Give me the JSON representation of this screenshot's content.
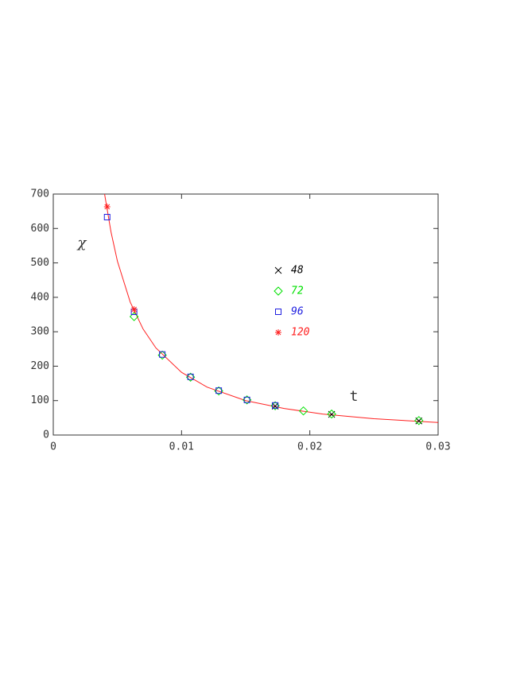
{
  "chart_data": {
    "type": "scatter",
    "x_label": "t",
    "y_label": "χ",
    "xlim": [
      0,
      0.03
    ],
    "ylim": [
      0,
      700
    ],
    "xticks": [
      0,
      0.01,
      0.02,
      0.03
    ],
    "yticks": [
      0,
      100,
      200,
      300,
      400,
      500,
      600,
      700
    ],
    "series": [
      {
        "name": "48",
        "color": "#000000",
        "marker": "x",
        "x": [
          0.0173,
          0.0217,
          0.0285
        ],
        "values": [
          84,
          60,
          41
        ]
      },
      {
        "name": "72",
        "color": "#00e000",
        "marker": "diamond",
        "x": [
          0.0063,
          0.0085,
          0.0107,
          0.0129,
          0.0151,
          0.0173,
          0.0195,
          0.0217,
          0.0285
        ],
        "values": [
          344,
          232,
          168,
          128,
          102,
          85,
          70,
          61,
          42
        ]
      },
      {
        "name": "96",
        "color": "#2020e0",
        "marker": "square",
        "x": [
          0.0042,
          0.0063,
          0.0085,
          0.0107,
          0.0129,
          0.0151,
          0.0173
        ],
        "values": [
          633,
          358,
          234,
          169,
          129,
          102,
          86
        ]
      },
      {
        "name": "120",
        "color": "#ff2020",
        "marker": "star",
        "x": [
          0.0042,
          0.0063
        ],
        "values": [
          663,
          365
        ]
      }
    ],
    "curve": {
      "color": "#ff2020",
      "x": [
        0.004,
        0.0045,
        0.005,
        0.006,
        0.007,
        0.008,
        0.01,
        0.012,
        0.015,
        0.018,
        0.021,
        0.025,
        0.03
      ],
      "values": [
        700,
        590,
        505,
        386,
        308,
        253,
        182,
        139,
        100,
        77,
        61,
        47.5,
        36.3
      ]
    }
  }
}
